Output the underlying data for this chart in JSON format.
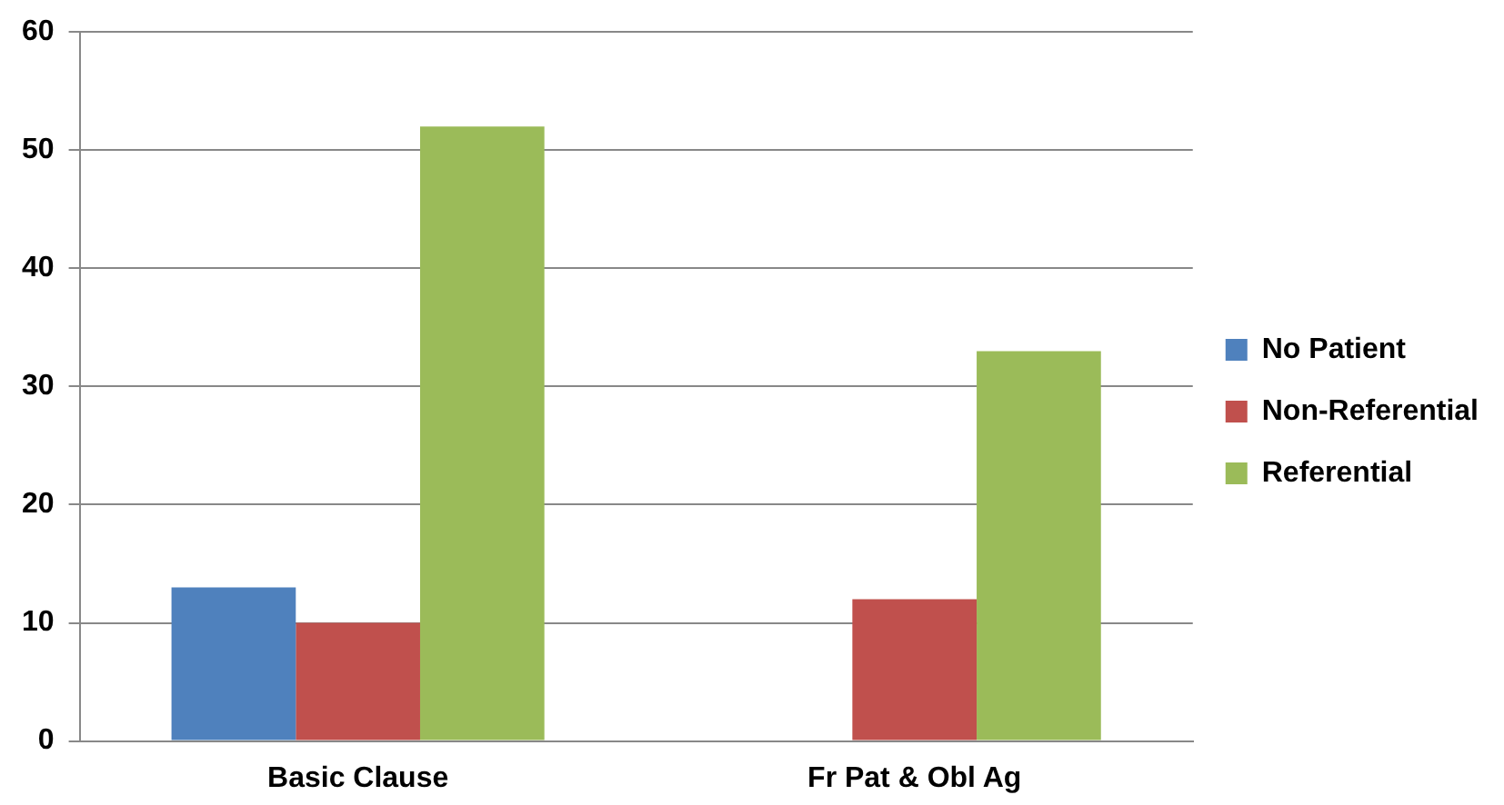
{
  "chart_data": {
    "type": "bar",
    "categories": [
      "Basic Clause",
      "Fr Pat & Obl Ag"
    ],
    "series": [
      {
        "name": "No Patient",
        "color": "#4f81bd",
        "values": [
          13,
          0
        ]
      },
      {
        "name": "Non-Referential",
        "color": "#c0504d",
        "values": [
          10,
          12
        ]
      },
      {
        "name": "Referential",
        "color": "#9bbb59",
        "values": [
          52,
          33
        ]
      }
    ],
    "ylim": [
      0,
      60
    ],
    "yticks": [
      0,
      10,
      20,
      30,
      40,
      50,
      60
    ],
    "grid": "y",
    "legend": "right"
  }
}
